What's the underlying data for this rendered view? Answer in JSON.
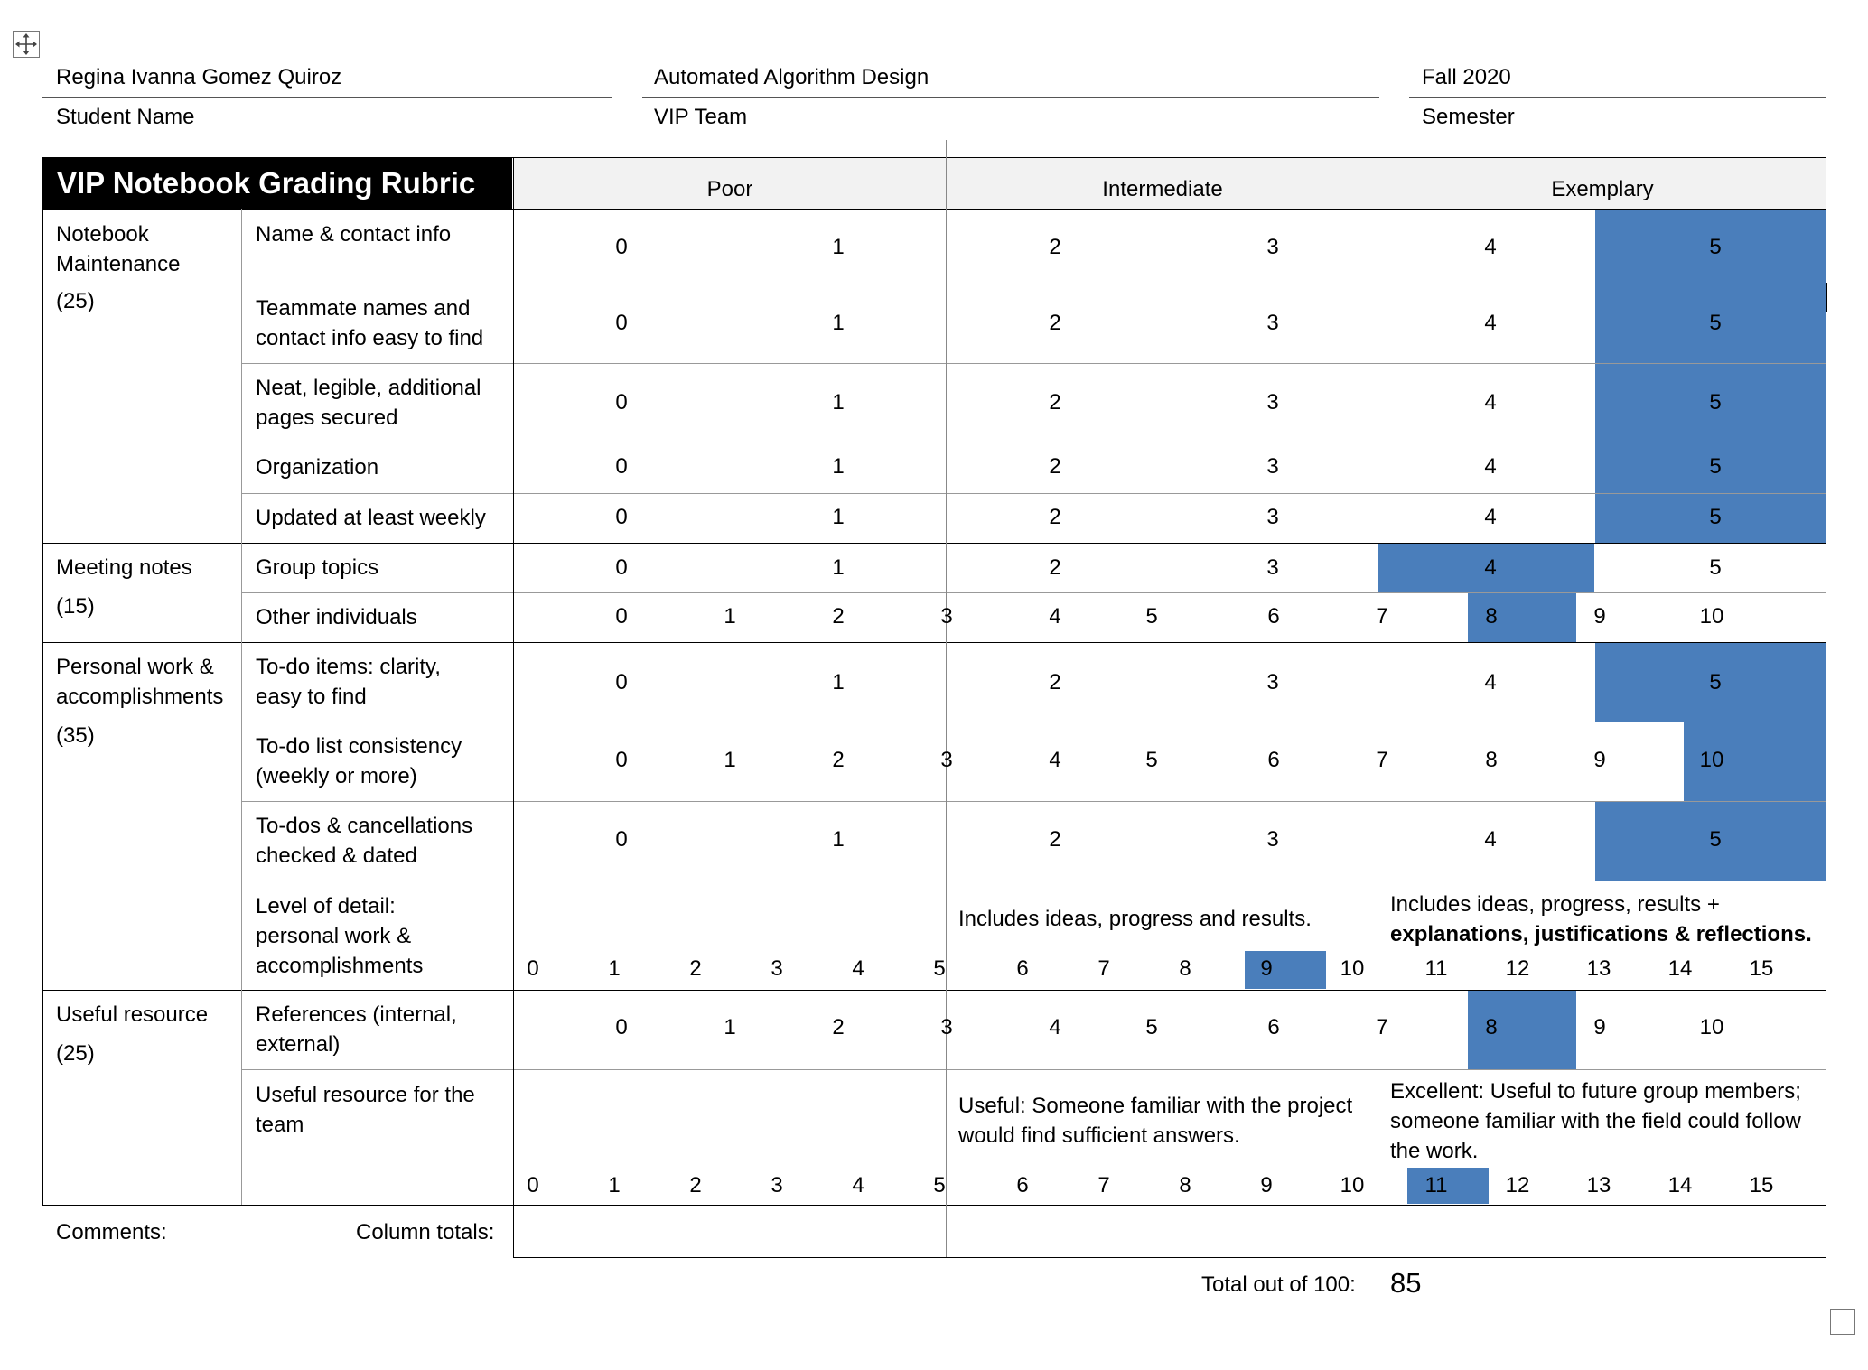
{
  "header": {
    "student_name": "Regina Ivanna Gomez Quiroz",
    "student_name_label": "Student Name",
    "team_name": "Automated Algorithm Design",
    "team_label": "VIP Team",
    "semester": "Fall 2020",
    "semester_label": "Semester"
  },
  "rubric": {
    "title": "VIP Notebook Grading Rubric",
    "levels": [
      "Poor",
      "Intermediate",
      "Exemplary"
    ],
    "categories": [
      {
        "name": "Notebook Maintenance",
        "points": "(25)"
      },
      {
        "name": "Meeting notes",
        "points": "(15)"
      },
      {
        "name": "Personal work & accomplishments",
        "points": "(35)"
      },
      {
        "name": "Useful resource",
        "points": "(25)"
      }
    ],
    "criteria": [
      {
        "label": "Name & contact info",
        "selected": 5
      },
      {
        "label": "Teammate names and contact info easy to find",
        "selected": 5
      },
      {
        "label": "Neat, legible, additional pages secured",
        "selected": 5
      },
      {
        "label": "Organization",
        "selected": 5
      },
      {
        "label": "Updated at least weekly",
        "selected": 5
      },
      {
        "label": "Group topics",
        "selected": 4
      },
      {
        "label": "Other individuals",
        "selected": 8
      },
      {
        "label": "To-do items: clarity, easy to find",
        "selected": 5
      },
      {
        "label": "To-do list consistency (weekly or more)",
        "selected": 10
      },
      {
        "label": "To-dos & cancellations checked & dated",
        "selected": 5
      },
      {
        "label": "Level of detail: personal work & accomplishments",
        "selected": 9
      },
      {
        "label": "References (internal, external)",
        "selected": 8
      },
      {
        "label": "Useful resource for the team",
        "selected": 11
      }
    ],
    "level_of_detail_intermediate": "Includes ideas, progress and results.",
    "level_of_detail_exemplary": "Includes ideas, progress, results +",
    "level_of_detail_exemplary_bold": "explanations, justifications & reflections.",
    "useful_intermediate": "Useful: Someone familiar with the project would find sufficient answers.",
    "useful_exemplary": "Excellent: Useful to future group members; someone familiar with the field could follow the work.",
    "scale_0_5": [
      "0",
      "1",
      "2",
      "3",
      "4",
      "5"
    ],
    "scale_0_10": [
      "0",
      "1",
      "2",
      "3",
      "4",
      "5",
      "6",
      "7",
      "8",
      "9",
      "10"
    ],
    "scale_0_15": [
      "0",
      "1",
      "2",
      "3",
      "4",
      "5",
      "6",
      "7",
      "8",
      "9",
      "10",
      "11",
      "12",
      "13",
      "14",
      "15"
    ]
  },
  "footer": {
    "comments_label": "Comments:",
    "column_totals_label": "Column totals:",
    "total_label": "Total out of 100:",
    "total_value": "85"
  }
}
